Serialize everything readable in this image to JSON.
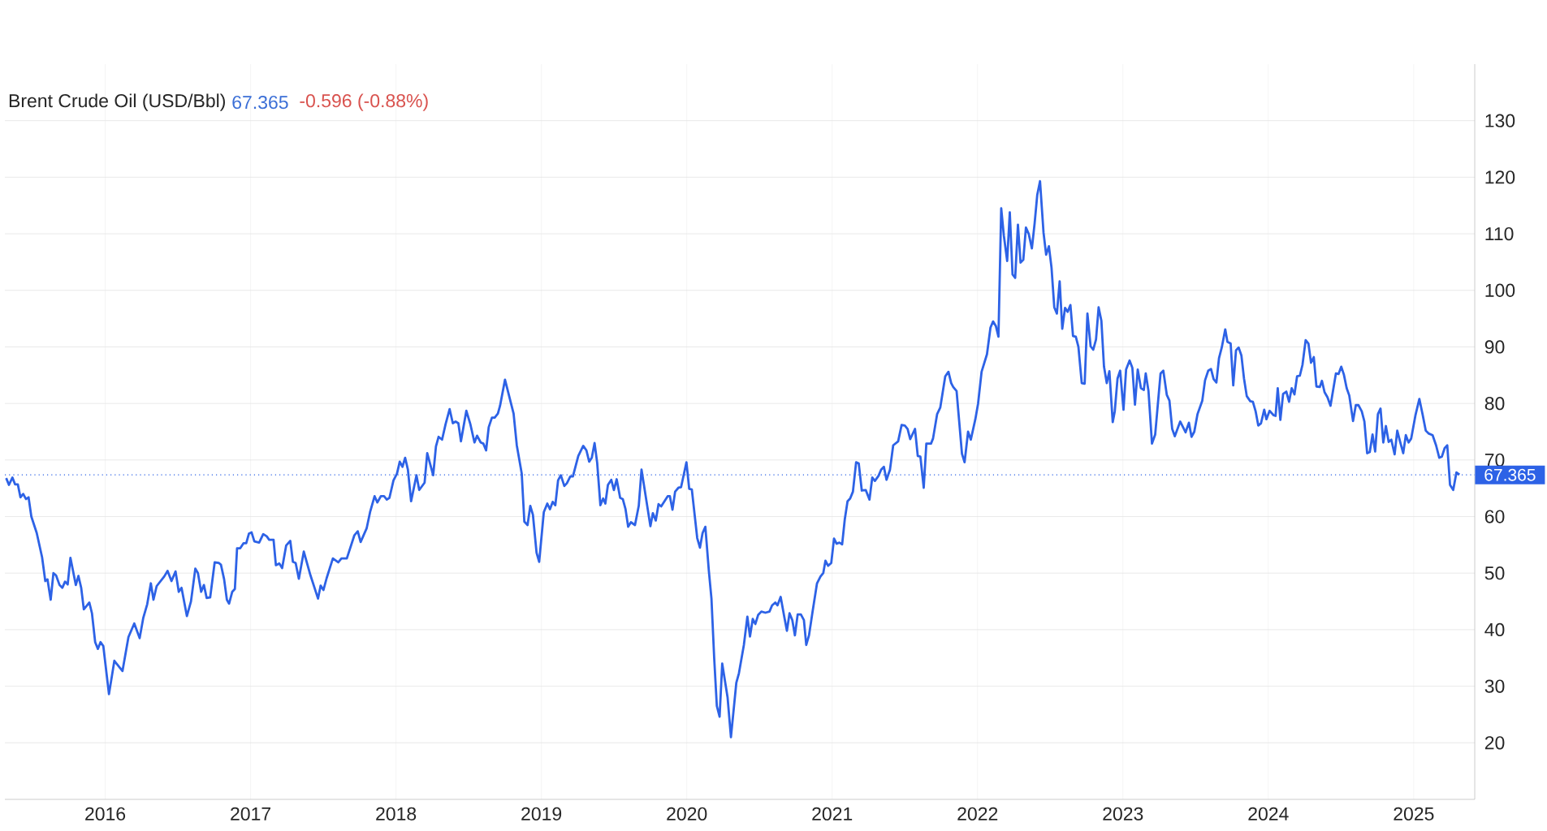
{
  "chart_data": {
    "type": "line",
    "title": "Brent Crude Oil (USD/Bbl)",
    "annotations": [
      "67.365",
      "-0.596 (-0.88%)"
    ],
    "x": [
      2015.319,
      2015.338,
      2015.362,
      2015.38,
      2015.399,
      2015.417,
      2015.436,
      2015.455,
      2015.473,
      2015.492,
      2015.529,
      2015.566,
      2015.588,
      2015.603,
      2015.625,
      2015.644,
      2015.662,
      2015.686,
      2015.705,
      2015.724,
      2015.742,
      2015.761,
      2015.798,
      2015.816,
      2015.835,
      2015.853,
      2015.891,
      2015.909,
      2015.931,
      2015.95,
      2015.968,
      2015.987,
      2016.026,
      2016.063,
      2016.119,
      2016.16,
      2016.2,
      2016.237,
      2016.262,
      2016.289,
      2016.314,
      2016.332,
      2016.354,
      2016.406,
      2016.429,
      2016.456,
      2016.484,
      2016.506,
      2016.525,
      2016.562,
      2016.59,
      2016.62,
      2016.638,
      2016.66,
      2016.679,
      2016.698,
      2016.722,
      2016.753,
      2016.781,
      2016.796,
      2016.818,
      2016.837,
      2016.852,
      2016.874,
      2016.892,
      2016.907,
      2016.929,
      2016.952,
      2016.97,
      2016.989,
      2017.007,
      2017.026,
      2017.059,
      2017.087,
      2017.111,
      2017.128,
      2017.158,
      2017.174,
      2017.198,
      2017.217,
      2017.245,
      2017.273,
      2017.291,
      2017.31,
      2017.332,
      2017.366,
      2017.412,
      2017.464,
      2017.482,
      2017.501,
      2017.523,
      2017.566,
      2017.603,
      2017.625,
      2017.662,
      2017.714,
      2017.737,
      2017.757,
      2017.798,
      2017.822,
      2017.853,
      2017.872,
      2017.896,
      2017.918,
      2017.937,
      2017.955,
      2017.983,
      2018.007,
      2018.026,
      2018.045,
      2018.063,
      2018.082,
      2018.104,
      2018.141,
      2018.16,
      2018.197,
      2018.215,
      2018.256,
      2018.275,
      2018.293,
      2018.317,
      2018.341,
      2018.369,
      2018.391,
      2018.41,
      2018.429,
      2018.447,
      2018.484,
      2018.512,
      2018.54,
      2018.558,
      2018.583,
      2018.601,
      2018.62,
      2018.638,
      2018.66,
      2018.679,
      2018.701,
      2018.716,
      2018.75,
      2018.809,
      2018.831,
      2018.865,
      2018.883,
      2018.905,
      2018.924,
      2018.942,
      2018.967,
      2018.985,
      2019.017,
      2019.041,
      2019.059,
      2019.078,
      2019.096,
      2019.115,
      2019.134,
      2019.158,
      2019.176,
      2019.199,
      2019.217,
      2019.254,
      2019.288,
      2019.31,
      2019.329,
      2019.347,
      2019.366,
      2019.384,
      2019.406,
      2019.425,
      2019.44,
      2019.458,
      2019.481,
      2019.499,
      2019.518,
      2019.542,
      2019.56,
      2019.579,
      2019.597,
      2019.616,
      2019.644,
      2019.67,
      2019.689,
      2019.75,
      2019.767,
      2019.787,
      2019.806,
      2019.824,
      2019.869,
      2019.884,
      2019.902,
      2019.92,
      2019.943,
      2019.961,
      2019.998,
      2020.017,
      2020.035,
      2020.072,
      2020.091,
      2020.109,
      2020.128,
      2020.152,
      2020.17,
      2020.189,
      2020.207,
      2020.226,
      2020.244,
      2020.281,
      2020.304,
      2020.341,
      2020.359,
      2020.393,
      2020.417,
      2020.435,
      2020.454,
      2020.472,
      2020.491,
      2020.513,
      2020.541,
      2020.569,
      2020.587,
      2020.609,
      2020.624,
      2020.646,
      2020.67,
      2020.689,
      2020.707,
      2020.726,
      2020.744,
      2020.763,
      2020.785,
      2020.806,
      2020.822,
      2020.841,
      2020.865,
      2020.896,
      2020.92,
      2020.939,
      2020.954,
      2020.972,
      2020.994,
      2021.013,
      2021.031,
      2021.05,
      2021.069,
      2021.087,
      2021.106,
      2021.124,
      2021.143,
      2021.165,
      2021.183,
      2021.204,
      2021.231,
      2021.257,
      2021.276,
      2021.294,
      2021.319,
      2021.337,
      2021.356,
      2021.374,
      2021.398,
      2021.42,
      2021.454,
      2021.478,
      2021.5,
      2021.519,
      2021.537,
      2021.57,
      2021.589,
      2021.607,
      2021.63,
      2021.648,
      2021.68,
      2021.694,
      2021.722,
      2021.744,
      2021.778,
      2021.8,
      2021.819,
      2021.833,
      2021.856,
      2021.893,
      2021.911,
      2021.935,
      2021.954,
      2021.985,
      2022.004,
      2022.028,
      2022.065,
      2022.089,
      2022.107,
      2022.126,
      2022.144,
      2022.163,
      2022.181,
      2022.204,
      2022.222,
      2022.241,
      2022.259,
      2022.278,
      2022.296,
      2022.315,
      2022.333,
      2022.352,
      2022.374,
      2022.393,
      2022.411,
      2022.43,
      2022.454,
      2022.472,
      2022.491,
      2022.509,
      2022.528,
      2022.546,
      2022.565,
      2022.583,
      2022.602,
      2022.62,
      2022.639,
      2022.657,
      2022.676,
      2022.694,
      2022.717,
      2022.737,
      2022.756,
      2022.778,
      2022.796,
      2022.815,
      2022.833,
      2022.852,
      2022.87,
      2022.889,
      2022.907,
      2022.93,
      2022.944,
      2022.963,
      2022.981,
      2023.004,
      2023.022,
      2023.046,
      2023.065,
      2023.083,
      2023.102,
      2023.124,
      2023.144,
      2023.157,
      2023.176,
      2023.2,
      2023.222,
      2023.259,
      2023.278,
      2023.302,
      2023.32,
      2023.339,
      2023.357,
      2023.394,
      2023.431,
      2023.454,
      2023.472,
      2023.491,
      2023.513,
      2023.546,
      2023.565,
      2023.587,
      2023.606,
      2023.624,
      2023.643,
      2023.661,
      2023.68,
      2023.704,
      2023.719,
      2023.741,
      2023.759,
      2023.778,
      2023.796,
      2023.815,
      2023.833,
      2023.852,
      2023.876,
      2023.894,
      2023.913,
      2023.931,
      2023.95,
      2023.972,
      2023.987,
      2024.009,
      2024.037,
      2024.05,
      2024.065,
      2024.083,
      2024.102,
      2024.124,
      2024.143,
      2024.161,
      2024.18,
      2024.198,
      2024.217,
      2024.235,
      2024.257,
      2024.276,
      2024.294,
      2024.313,
      2024.331,
      2024.354,
      2024.369,
      2024.387,
      2024.407,
      2024.428,
      2024.465,
      2024.483,
      2024.502,
      2024.52,
      2024.539,
      2024.557,
      2024.583,
      2024.602,
      2024.62,
      2024.643,
      2024.661,
      2024.68,
      2024.698,
      2024.717,
      2024.735,
      2024.754,
      2024.772,
      2024.791,
      2024.809,
      2024.828,
      2024.846,
      2024.869,
      2024.887,
      2024.906,
      2024.928,
      2024.946,
      2024.965,
      2024.983,
      2025.013,
      2025.039,
      2025.061,
      2025.083,
      2025.102,
      2025.13,
      2025.154,
      2025.176,
      2025.194,
      2025.213,
      2025.231,
      2025.25,
      2025.272,
      2025.294,
      2025.315
    ],
    "values": [
      66.8,
      65.6,
      66.9,
      65.7,
      65.7,
      63.4,
      64.0,
      63.1,
      63.4,
      60.0,
      57.1,
      52.8,
      48.6,
      48.9,
      45.3,
      50.0,
      49.6,
      47.9,
      47.4,
      48.5,
      48.0,
      52.7,
      47.9,
      49.5,
      47.4,
      43.6,
      44.8,
      42.9,
      37.8,
      36.6,
      37.8,
      37.1,
      28.6,
      34.5,
      32.7,
      38.7,
      41.1,
      38.5,
      42.1,
      44.5,
      48.2,
      45.3,
      47.7,
      49.4,
      50.4,
      48.6,
      50.3,
      46.7,
      47.4,
      42.4,
      45.0,
      50.8,
      50.0,
      46.7,
      47.9,
      45.6,
      45.7,
      51.9,
      51.8,
      51.5,
      48.9,
      45.3,
      44.6,
      46.7,
      47.2,
      54.4,
      54.4,
      55.3,
      55.3,
      57.0,
      57.2,
      55.6,
      55.4,
      56.9,
      56.5,
      55.9,
      55.9,
      51.4,
      51.7,
      50.9,
      54.9,
      55.7,
      52.0,
      51.8,
      49.0,
      53.8,
      49.6,
      45.5,
      47.8,
      47.0,
      49.1,
      52.6,
      51.9,
      52.6,
      52.6,
      56.7,
      57.4,
      55.5,
      57.9,
      60.8,
      63.6,
      62.5,
      63.6,
      63.6,
      63.0,
      63.3,
      66.4,
      67.6,
      69.7,
      68.8,
      70.4,
      68.3,
      62.7,
      67.3,
      64.7,
      66.0,
      71.2,
      67.3,
      72.4,
      74.1,
      73.6,
      76.3,
      79.0,
      76.5,
      76.8,
      76.5,
      73.3,
      78.7,
      76.3,
      73.1,
      74.3,
      73.1,
      72.9,
      71.7,
      75.8,
      77.5,
      77.5,
      78.2,
      79.6,
      84.2,
      78.2,
      72.6,
      67.6,
      59.1,
      58.5,
      61.9,
      60.3,
      53.6,
      52.0,
      60.8,
      62.3,
      61.3,
      62.6,
      62.0,
      66.4,
      67.3,
      65.4,
      65.9,
      67.1,
      67.1,
      70.7,
      72.5,
      71.7,
      69.7,
      70.4,
      73.0,
      69.5,
      62.0,
      63.2,
      62.3,
      65.6,
      66.5,
      64.7,
      66.6,
      63.3,
      63.1,
      61.3,
      58.2,
      59.0,
      58.5,
      61.9,
      68.3,
      58.3,
      60.6,
      59.3,
      62.2,
      61.8,
      63.6,
      63.6,
      61.2,
      64.4,
      65.1,
      65.2,
      69.6,
      64.9,
      64.8,
      56.2,
      54.5,
      57.1,
      58.2,
      50.4,
      45.5,
      34.9,
      26.5,
      24.6,
      34.0,
      28.0,
      21.0,
      30.6,
      32.3,
      37.3,
      42.3,
      38.8,
      41.9,
      41.0,
      42.6,
      43.2,
      43.0,
      43.2,
      44.3,
      44.8,
      44.3,
      45.8,
      42.4,
      39.8,
      42.9,
      41.7,
      39.0,
      42.7,
      42.7,
      41.7,
      37.3,
      39.0,
      43.1,
      48.2,
      49.4,
      50.0,
      52.2,
      51.3,
      51.8,
      56.1,
      55.2,
      55.4,
      55.1,
      59.5,
      62.7,
      63.2,
      64.4,
      69.6,
      69.4,
      64.6,
      64.7,
      63.0,
      66.9,
      66.3,
      67.2,
      68.3,
      68.8,
      66.5,
      68.3,
      72.6,
      73.3,
      76.2,
      76.1,
      75.5,
      73.7,
      75.5,
      70.7,
      70.6,
      65.1,
      72.9,
      72.9,
      73.8,
      78.1,
      79.3,
      84.8,
      85.6,
      83.6,
      82.9,
      82.2,
      71.1,
      69.6,
      75.0,
      73.6,
      77.2,
      80.0,
      85.6,
      88.7,
      93.4,
      94.5,
      93.7,
      91.8,
      114.5,
      109.7,
      105.2,
      113.8,
      102.8,
      102.2,
      111.6,
      104.9,
      105.4,
      111.1,
      110.0,
      107.4,
      111.9,
      116.9,
      119.3,
      110.2,
      106.3,
      107.8,
      104.0,
      97.0,
      95.9,
      101.6,
      93.2,
      96.9,
      96.2,
      97.4,
      91.9,
      91.8,
      90.0,
      83.6,
      83.5,
      95.9,
      90.1,
      89.5,
      91.3,
      97.0,
      94.6,
      86.5,
      83.6,
      85.7,
      76.7,
      78.6,
      84.4,
      85.8,
      78.9,
      86.0,
      87.6,
      86.3,
      79.8,
      86.0,
      82.7,
      82.4,
      85.3,
      82.2,
      72.9,
      74.5,
      85.3,
      85.8,
      81.5,
      80.5,
      75.5,
      74.2,
      76.8,
      74.9,
      76.6,
      74.1,
      75.0,
      78.1,
      80.5,
      84.1,
      85.8,
      86.1,
      84.3,
      83.7,
      88.0,
      89.9,
      93.1,
      90.9,
      90.6,
      83.2,
      89.4,
      89.9,
      88.5,
      84.4,
      81.3,
      80.4,
      80.3,
      78.6,
      76.1,
      76.5,
      78.9,
      77.2,
      78.7,
      77.9,
      77.8,
      82.7,
      77.1,
      81.7,
      82.1,
      80.3,
      82.7,
      81.6,
      84.8,
      84.9,
      86.8,
      91.2,
      90.6,
      87.2,
      88.2,
      83.0,
      82.9,
      84.0,
      82.0,
      81.1,
      79.6,
      85.3,
      85.2,
      86.5,
      85.1,
      82.7,
      81.4,
      76.9,
      79.7,
      79.7,
      78.6,
      76.8,
      71.2,
      71.4,
      74.5,
      71.5,
      78.1,
      79.1,
      73.1,
      76.0,
      73.2,
      73.6,
      71.0,
      75.2,
      73.3,
      71.2,
      74.4,
      73.1,
      73.8,
      78.0,
      80.8,
      78.1,
      75.2,
      74.7,
      74.4,
      72.6,
      70.4,
      70.6,
      72.1,
      72.6,
      65.6,
      64.7,
      67.8,
      67.4
    ],
    "color": "#2d62e6",
    "line_style": "solid",
    "xlim": [
      2015.31,
      2025.42
    ],
    "ylim": [
      10,
      140
    ],
    "xticks": [
      2016,
      2017,
      2018,
      2019,
      2020,
      2021,
      2022,
      2023,
      2024,
      2025
    ],
    "yticks": [
      20,
      30,
      40,
      50,
      60,
      70,
      80,
      90,
      100,
      110,
      120,
      130
    ],
    "grid": true,
    "ref_lines": [
      {
        "axis": "y",
        "value": 67.365,
        "label": "67.365",
        "color": "#2d62e6",
        "line_style": "dotted"
      }
    ]
  }
}
